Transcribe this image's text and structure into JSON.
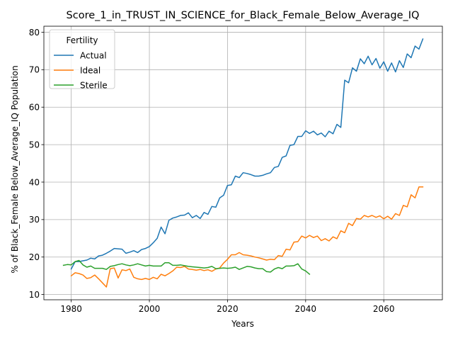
{
  "chart_data": {
    "type": "line",
    "title": "Score_1_in_TRUST_IN_SCIENCE_for_Black_Female_Below_Average_IQ",
    "xlabel": "Years",
    "ylabel": "% of Black_Female Below_Average_IQ Population",
    "xlim": [
      1973,
      2075
    ],
    "ylim": [
      8.6,
      81.6
    ],
    "xticks": [
      1980,
      2000,
      2020,
      2040,
      2060
    ],
    "yticks": [
      10,
      20,
      30,
      40,
      50,
      60,
      70,
      80
    ],
    "grid": true,
    "legend": {
      "title": "Fertility",
      "placement": "upper-left"
    },
    "series": [
      {
        "name": "Actual",
        "color": "#1f77b4",
        "x": [
          1980,
          1981,
          1982,
          1983,
          1984,
          1985,
          1986,
          1987,
          1988,
          1989,
          1990,
          1991,
          1992,
          1993,
          1994,
          1995,
          1996,
          1997,
          1998,
          1999,
          2000,
          2001,
          2002,
          2003,
          2004,
          2005,
          2006,
          2007,
          2008,
          2009,
          2010,
          2011,
          2012,
          2013,
          2014,
          2015,
          2016,
          2017,
          2018,
          2019,
          2020,
          2021,
          2022,
          2023,
          2024,
          2025,
          2026,
          2027,
          2028,
          2029,
          2030,
          2031,
          2032,
          2033,
          2034,
          2035,
          2036,
          2037,
          2038,
          2039,
          2040,
          2041,
          2042,
          2043,
          2044,
          2045,
          2046,
          2047,
          2048,
          2049,
          2050,
          2051,
          2052,
          2053,
          2054,
          2055,
          2056,
          2057,
          2058,
          2059,
          2060,
          2061,
          2062,
          2063,
          2064,
          2065,
          2066,
          2067,
          2068,
          2069,
          2070
        ],
        "y": [
          16.8,
          18.8,
          18.8,
          19.0,
          19.2,
          19.7,
          19.5,
          20.3,
          20.5,
          21.0,
          21.6,
          22.3,
          22.2,
          22.1,
          21.0,
          21.3,
          21.7,
          21.2,
          22.0,
          22.3,
          22.8,
          23.8,
          25.0,
          28.0,
          26.2,
          29.8,
          30.4,
          30.7,
          31.1,
          31.2,
          31.8,
          30.5,
          31.1,
          30.3,
          31.9,
          31.4,
          33.5,
          33.3,
          35.8,
          36.5,
          39.1,
          39.3,
          41.6,
          41.2,
          42.5,
          42.3,
          42.0,
          41.6,
          41.6,
          41.8,
          42.2,
          42.5,
          43.9,
          44.2,
          46.6,
          47.0,
          49.8,
          50.0,
          52.2,
          52.2,
          53.7,
          53.0,
          53.6,
          52.6,
          53.1,
          52.1,
          53.6,
          52.9,
          55.4,
          54.6,
          67.2,
          66.5,
          70.5,
          69.6,
          72.9,
          71.6,
          73.6,
          71.3,
          73.0,
          70.4,
          72.1,
          69.6,
          71.8,
          69.4,
          72.4,
          70.6,
          74.2,
          73.2,
          76.3,
          75.5,
          78.2
        ]
      },
      {
        "name": "Ideal",
        "color": "#ff7f0e",
        "x": [
          1980,
          1981,
          1982,
          1983,
          1984,
          1985,
          1986,
          1987,
          1988,
          1989,
          1990,
          1991,
          1992,
          1993,
          1994,
          1995,
          1996,
          1997,
          1998,
          1999,
          2000,
          2001,
          2002,
          2003,
          2004,
          2005,
          2006,
          2007,
          2008,
          2009,
          2010,
          2011,
          2012,
          2013,
          2014,
          2015,
          2016,
          2017,
          2018,
          2019,
          2020,
          2021,
          2022,
          2023,
          2024,
          2025,
          2026,
          2027,
          2028,
          2029,
          2030,
          2031,
          2032,
          2033,
          2034,
          2035,
          2036,
          2037,
          2038,
          2039,
          2040,
          2041,
          2042,
          2043,
          2044,
          2045,
          2046,
          2047,
          2048,
          2049,
          2050,
          2051,
          2052,
          2053,
          2054,
          2055,
          2056,
          2057,
          2058,
          2059,
          2060,
          2061,
          2062,
          2063,
          2064,
          2065,
          2066,
          2067,
          2068,
          2069,
          2070
        ],
        "y": [
          15.0,
          15.8,
          15.6,
          15.2,
          14.3,
          14.5,
          15.2,
          14.2,
          13.1,
          12.0,
          16.9,
          17.1,
          14.4,
          16.6,
          16.4,
          16.8,
          14.6,
          14.2,
          14.0,
          14.3,
          14.0,
          14.6,
          14.2,
          15.4,
          15.0,
          15.6,
          16.3,
          17.3,
          17.2,
          17.5,
          16.8,
          16.7,
          16.5,
          16.7,
          16.4,
          16.6,
          16.2,
          16.8,
          17.1,
          18.4,
          19.4,
          20.6,
          20.6,
          21.2,
          20.6,
          20.5,
          20.3,
          20.0,
          19.8,
          19.5,
          19.2,
          19.4,
          19.3,
          20.4,
          20.2,
          22.1,
          21.9,
          24.0,
          24.1,
          25.6,
          25.1,
          25.8,
          25.2,
          25.6,
          24.4,
          24.9,
          24.3,
          25.4,
          24.9,
          27.0,
          26.5,
          29.0,
          28.4,
          30.3,
          30.1,
          31.1,
          30.7,
          31.1,
          30.6,
          31.0,
          30.2,
          30.9,
          30.1,
          31.6,
          31.1,
          33.8,
          33.4,
          36.6,
          35.8,
          38.7,
          38.7
        ]
      },
      {
        "name": "Sterile",
        "color": "#2ca02c",
        "x": [
          1978,
          1979,
          1980,
          1981,
          1982,
          1983,
          1984,
          1985,
          1986,
          1987,
          1988,
          1989,
          1990,
          1991,
          1992,
          1993,
          1994,
          1995,
          1996,
          1997,
          1998,
          1999,
          2000,
          2001,
          2002,
          2003,
          2004,
          2005,
          2006,
          2007,
          2008,
          2009,
          2010,
          2011,
          2012,
          2013,
          2014,
          2015,
          2016,
          2017,
          2018,
          2019,
          2020,
          2021,
          2022,
          2023,
          2024,
          2025,
          2026,
          2027,
          2028,
          2029,
          2030,
          2031,
          2032,
          2033,
          2034,
          2035,
          2036,
          2037,
          2038,
          2039,
          2040,
          2041
        ],
        "y": [
          17.8,
          18.0,
          17.9,
          18.8,
          19.1,
          17.9,
          17.3,
          17.6,
          17.0,
          17.0,
          17.0,
          16.7,
          17.5,
          17.7,
          18.0,
          18.2,
          17.9,
          17.7,
          17.9,
          18.2,
          17.9,
          17.6,
          17.8,
          17.6,
          17.6,
          17.6,
          18.5,
          18.5,
          17.8,
          17.8,
          17.9,
          17.7,
          17.5,
          17.4,
          17.3,
          17.2,
          17.1,
          17.2,
          17.5,
          16.9,
          17.0,
          17.1,
          17.0,
          17.1,
          17.3,
          16.7,
          17.1,
          17.5,
          17.4,
          17.1,
          16.9,
          16.9,
          16.1,
          16.0,
          16.8,
          17.2,
          16.9,
          17.6,
          17.6,
          17.7,
          18.2,
          16.8,
          16.3,
          15.4
        ]
      }
    ]
  }
}
